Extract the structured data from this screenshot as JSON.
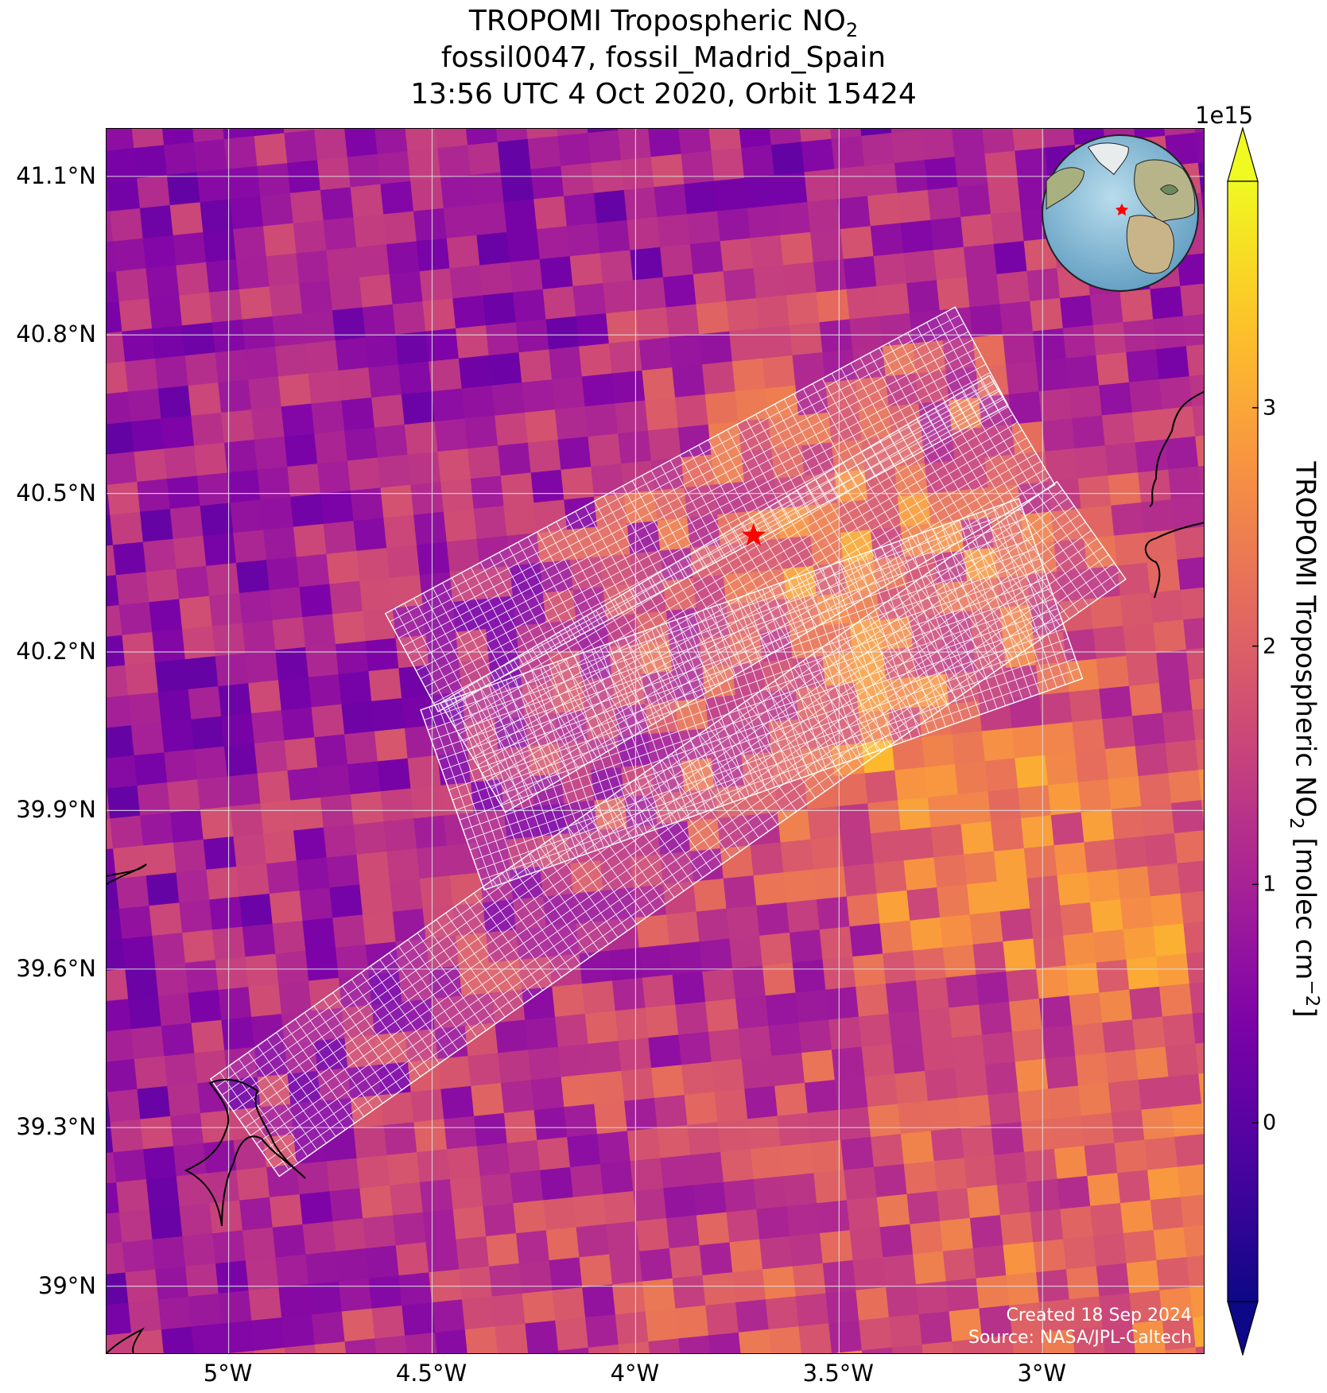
{
  "title": {
    "line1_main": "TROPOMI Tropospheric NO",
    "line1_sub": "2",
    "line2": "fossil0047, fossil_Madrid_Spain",
    "line3": "13:56 UTC 4 Oct 2020, Orbit 15424"
  },
  "map": {
    "lon_min": -5.3,
    "lon_max": -2.6,
    "lat_min": 38.87,
    "lat_max": 41.19,
    "lat_ticks": [
      {
        "value": 41.1,
        "label": "41.1°N"
      },
      {
        "value": 40.8,
        "label": "40.8°N"
      },
      {
        "value": 40.5,
        "label": "40.5°N"
      },
      {
        "value": 40.2,
        "label": "40.2°N"
      },
      {
        "value": 39.9,
        "label": "39.9°N"
      },
      {
        "value": 39.6,
        "label": "39.6°N"
      },
      {
        "value": 39.3,
        "label": "39.3°N"
      },
      {
        "value": 39.0,
        "label": "39°N"
      }
    ],
    "lon_ticks": [
      {
        "value": -5.0,
        "label": "5°W"
      },
      {
        "value": -4.5,
        "label": "4.5°W"
      },
      {
        "value": -4.0,
        "label": "4°W"
      },
      {
        "value": -3.5,
        "label": "3.5°W"
      },
      {
        "value": -3.0,
        "label": "3°W"
      }
    ],
    "source_marker": {
      "lon": -3.71,
      "lat": 40.42,
      "color": "#ff0000"
    },
    "grid_color": "#dddddd",
    "target_footprint_color": "#ffffff"
  },
  "colorbar": {
    "colormap": "plasma",
    "vmin": -0.75,
    "vmax": 3.95,
    "exponent_label": "1e15",
    "ticks": [
      {
        "value": 0,
        "label": "0"
      },
      {
        "value": 1,
        "label": "1"
      },
      {
        "value": 2,
        "label": "2"
      },
      {
        "value": 3,
        "label": "3"
      }
    ],
    "label_main": "TROPOMI Tropospheric NO",
    "label_sub": "2",
    "label_rest": " [molec cm",
    "label_sup": "−2",
    "label_end": "]"
  },
  "credits": {
    "created": "Created 18 Sep 2024",
    "source": "Source: NASA/JPL-Caltech"
  },
  "inset_globe": {
    "marker_color": "#ff0000"
  }
}
